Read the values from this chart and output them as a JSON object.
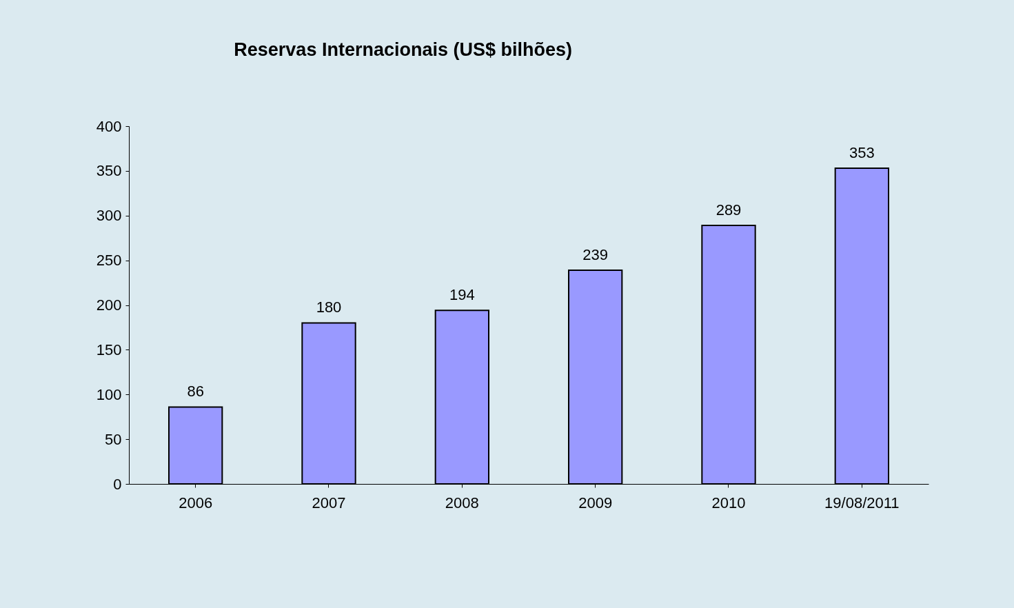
{
  "chart_data": {
    "type": "bar",
    "title": "Reservas Internacionais (US$ bilhões)",
    "categories": [
      "2006",
      "2007",
      "2008",
      "2009",
      "2010",
      "19/08/2011"
    ],
    "values": [
      86,
      180,
      194,
      239,
      289,
      353
    ],
    "color": "#9999ff",
    "ylim": [
      0,
      400
    ],
    "yticks": [
      0,
      50,
      100,
      150,
      200,
      250,
      300,
      350,
      400
    ],
    "grid": false,
    "data_labels": true
  }
}
